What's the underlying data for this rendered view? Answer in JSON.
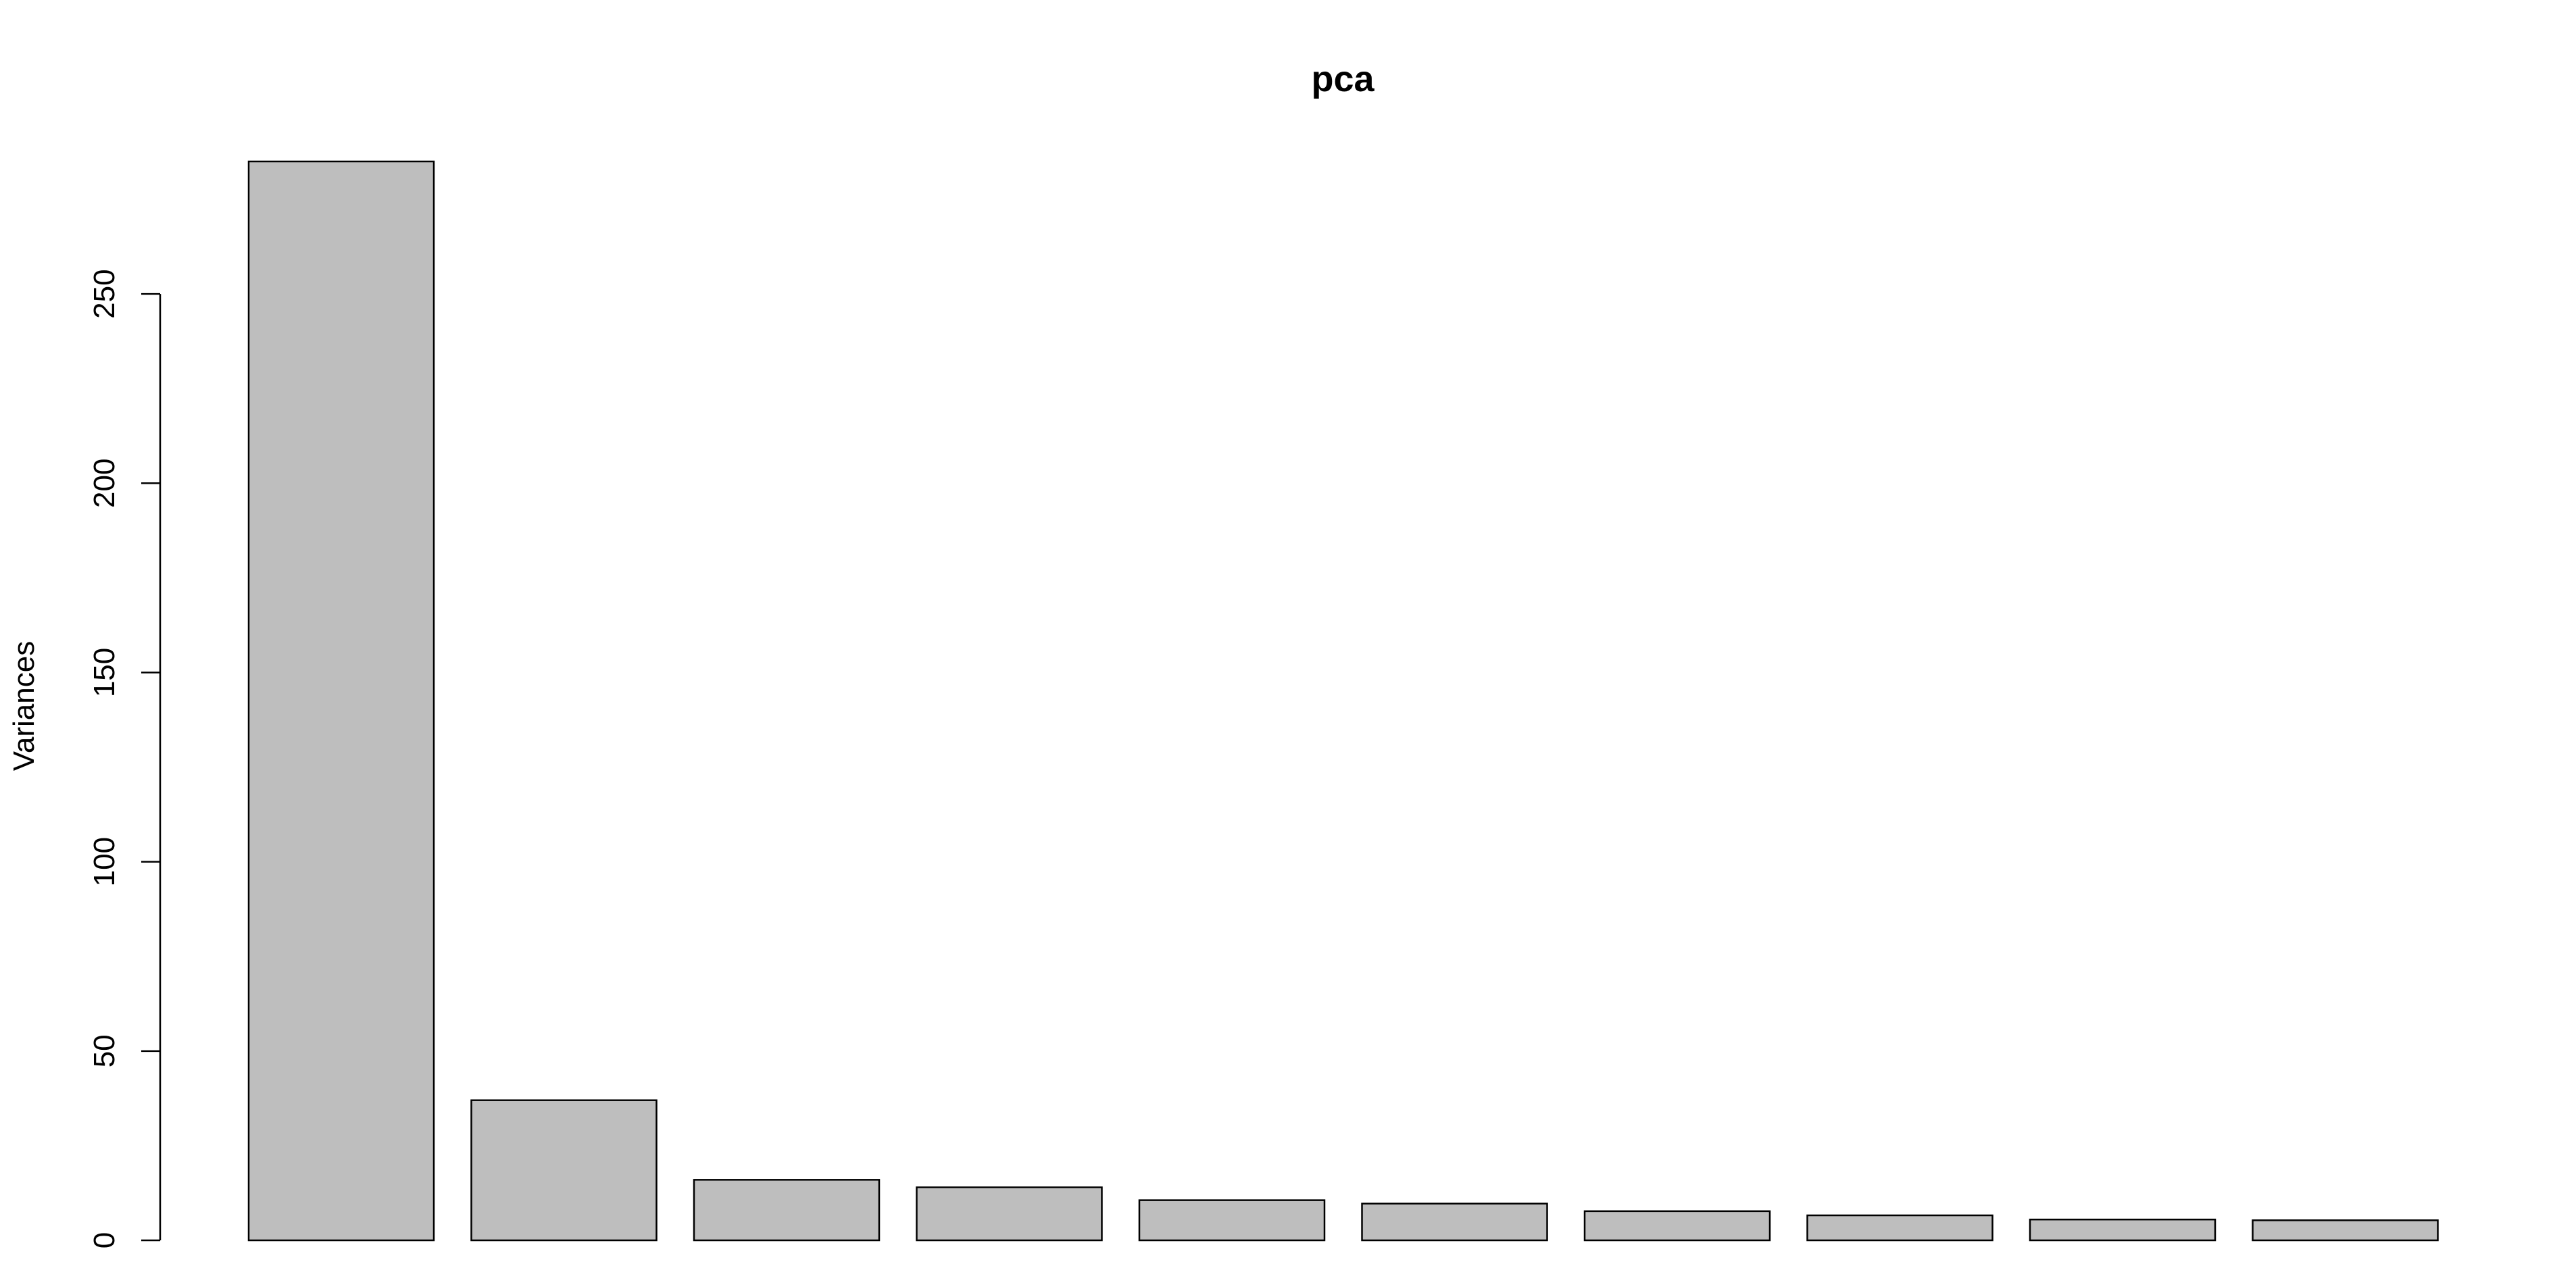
{
  "chart_data": {
    "type": "bar",
    "title": "pca",
    "xlabel": "",
    "ylabel": "Variances",
    "ylim": [
      0,
      285
    ],
    "yticks": [
      0,
      50,
      100,
      150,
      200,
      250
    ],
    "grid": false,
    "bar_color": "#bebebe",
    "bar_stroke": "#000000",
    "values": [
      285,
      37,
      16,
      14,
      10.6,
      9.7,
      7.7,
      6.6,
      5.5,
      5.3
    ]
  }
}
